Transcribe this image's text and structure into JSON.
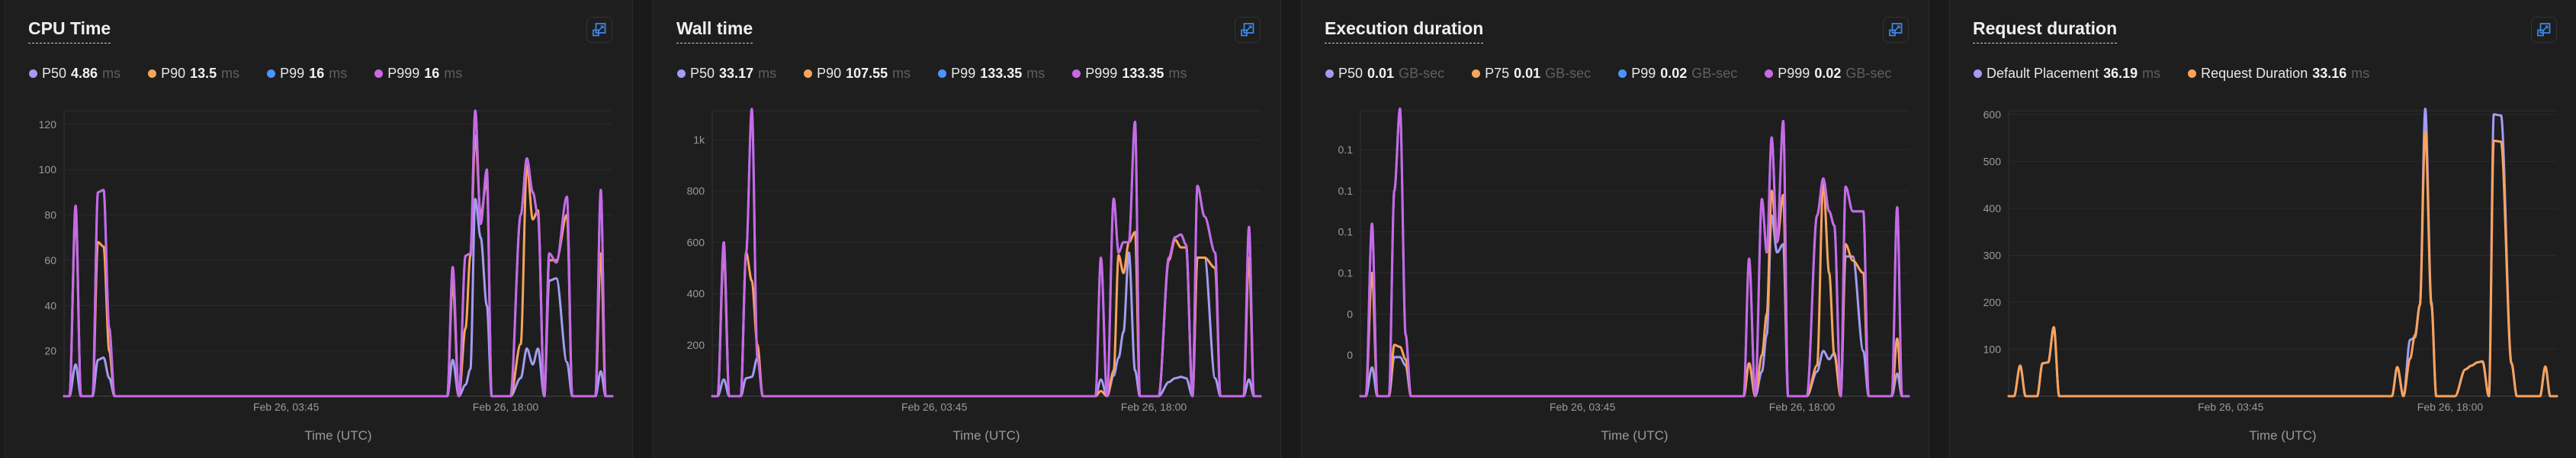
{
  "panels": [
    {
      "title": "CPU Time",
      "expand_icon": "expand-icon",
      "legend": [
        {
          "name": "P50",
          "value": "4.86",
          "unit": "ms",
          "color": "#a39cf4"
        },
        {
          "name": "P90",
          "value": "13.5",
          "unit": "ms",
          "color": "#f9a35c"
        },
        {
          "name": "P99",
          "value": "16",
          "unit": "ms",
          "color": "#4d94ff"
        },
        {
          "name": "P999",
          "value": "16",
          "unit": "ms",
          "color": "#c869e6"
        }
      ]
    },
    {
      "title": "Wall time",
      "expand_icon": "expand-icon",
      "legend": [
        {
          "name": "P50",
          "value": "33.17",
          "unit": "ms",
          "color": "#a39cf4"
        },
        {
          "name": "P90",
          "value": "107.55",
          "unit": "ms",
          "color": "#f9a35c"
        },
        {
          "name": "P99",
          "value": "133.35",
          "unit": "ms",
          "color": "#4d94ff"
        },
        {
          "name": "P999",
          "value": "133.35",
          "unit": "ms",
          "color": "#c869e6"
        }
      ]
    },
    {
      "title": "Execution duration",
      "expand_icon": "expand-icon",
      "legend": [
        {
          "name": "P50",
          "value": "0.01",
          "unit": "GB-sec",
          "color": "#a39cf4"
        },
        {
          "name": "P75",
          "value": "0.01",
          "unit": "GB-sec",
          "color": "#f9a35c"
        },
        {
          "name": "P99",
          "value": "0.02",
          "unit": "GB-sec",
          "color": "#4d94ff"
        },
        {
          "name": "P999",
          "value": "0.02",
          "unit": "GB-sec",
          "color": "#c869e6"
        }
      ]
    },
    {
      "title": "Request duration",
      "expand_icon": "expand-icon",
      "legend": [
        {
          "name": "Default Placement",
          "value": "36.19",
          "unit": "ms",
          "color": "#a39cf4"
        },
        {
          "name": "Request Duration",
          "value": "33.16",
          "unit": "ms",
          "color": "#f9a35c"
        }
      ]
    }
  ],
  "chart_data": [
    {
      "type": "line",
      "title": "CPU Time",
      "xlabel": "Time (UTC)",
      "ylabel": "",
      "grid": true,
      "legend": "top-left",
      "xlim": [
        "Feb 25, 13:20",
        "Feb 27, 00:56"
      ],
      "ylim": [
        0,
        126
      ],
      "xticks": [
        {
          "value": "Feb 26, 03:45",
          "label": "Feb 26, 03:45"
        },
        {
          "value": "Feb 26, 18:00",
          "label": "Feb 26, 18:00"
        }
      ],
      "yticks": [
        {
          "value": 20,
          "label": "20"
        },
        {
          "value": 40,
          "label": "40"
        },
        {
          "value": 60,
          "label": "60"
        },
        {
          "value": 80,
          "label": "80"
        },
        {
          "value": 100,
          "label": "100"
        },
        {
          "value": 120,
          "label": "120"
        }
      ],
      "x": [
        "Feb 25, 13:20",
        "Feb 25, 13:41",
        "Feb 25, 14:05",
        "Feb 25, 14:26",
        "Feb 25, 15:11",
        "Feb 25, 15:32",
        "Feb 25, 15:54",
        "Feb 25, 16:16",
        "Feb 25, 16:37",
        "Feb 26, 14:13",
        "Feb 26, 14:34",
        "Feb 26, 14:58",
        "Feb 26, 15:24",
        "Feb 26, 15:43",
        "Feb 26, 16:02",
        "Feb 26, 16:23",
        "Feb 26, 16:47",
        "Feb 26, 17:06",
        "Feb 26, 18:19",
        "Feb 26, 18:59",
        "Feb 26, 19:23",
        "Feb 26, 19:46",
        "Feb 26, 20:06",
        "Feb 26, 20:31",
        "Feb 26, 20:50",
        "Feb 26, 21:18",
        "Feb 26, 21:59",
        "Feb 26, 22:20",
        "Feb 26, 23:50",
        "Feb 27, 00:11",
        "Feb 27, 00:30",
        "Feb 27, 00:56"
      ],
      "series": [
        {
          "name": "P50",
          "color": "#a39cf4",
          "values": [
            0,
            0,
            14,
            0,
            0,
            16,
            17,
            8,
            0,
            0,
            16,
            0,
            5,
            12,
            87,
            70,
            40,
            0,
            0,
            8,
            21,
            14,
            21,
            0,
            51,
            52,
            15,
            0,
            0,
            11,
            0,
            0
          ]
        },
        {
          "name": "P90",
          "color": "#f9a35c",
          "values": [
            0,
            0,
            80,
            0,
            0,
            68,
            66,
            20,
            0,
            0,
            50,
            0,
            30,
            62,
            115,
            80,
            95,
            0,
            0,
            23,
            102,
            78,
            82,
            0,
            60,
            60,
            80,
            0,
            0,
            63,
            0,
            0
          ]
        },
        {
          "name": "P99",
          "color": "#4d94ff",
          "values": [
            0,
            0,
            84,
            0,
            0,
            90,
            91,
            30,
            0,
            0,
            57,
            0,
            62,
            63,
            126,
            76,
            100,
            0,
            0,
            80,
            105,
            90,
            80,
            0,
            63,
            59,
            88,
            0,
            0,
            91,
            0,
            0
          ]
        },
        {
          "name": "P999",
          "color": "#c869e6",
          "values": [
            0,
            0,
            84,
            0,
            0,
            90,
            91,
            30,
            0,
            0,
            57,
            0,
            62,
            63,
            126,
            76,
            100,
            0,
            0,
            80,
            105,
            90,
            80,
            0,
            63,
            59,
            88,
            0,
            0,
            91,
            0,
            0
          ]
        }
      ]
    },
    {
      "type": "line",
      "title": "Wall time",
      "xlabel": "Time (UTC)",
      "ylabel": "",
      "grid": true,
      "legend": "top-left",
      "xlim": [
        "Feb 25, 13:20",
        "Feb 27, 00:56"
      ],
      "ylim": [
        0,
        1113
      ],
      "xticks": [
        {
          "value": "Feb 26, 03:45",
          "label": "Feb 26, 03:45"
        },
        {
          "value": "Feb 26, 18:00",
          "label": "Feb 26, 18:00"
        }
      ],
      "yticks": [
        {
          "value": 200,
          "label": "200"
        },
        {
          "value": 400,
          "label": "400"
        },
        {
          "value": 600,
          "label": "600"
        },
        {
          "value": 800,
          "label": "800"
        },
        {
          "value": 1000,
          "label": "1k"
        }
      ],
      "x": [
        "Feb 25, 13:20",
        "Feb 25, 13:41",
        "Feb 25, 14:05",
        "Feb 25, 14:26",
        "Feb 25, 15:11",
        "Feb 25, 15:32",
        "Feb 25, 15:54",
        "Feb 25, 16:16",
        "Feb 25, 16:37",
        "Feb 26, 14:13",
        "Feb 26, 14:34",
        "Feb 26, 14:58",
        "Feb 26, 15:24",
        "Feb 26, 15:43",
        "Feb 26, 16:02",
        "Feb 26, 16:23",
        "Feb 26, 16:47",
        "Feb 26, 17:06",
        "Feb 26, 18:19",
        "Feb 26, 18:59",
        "Feb 26, 19:23",
        "Feb 26, 19:46",
        "Feb 26, 20:06",
        "Feb 26, 20:31",
        "Feb 26, 20:50",
        "Feb 26, 21:18",
        "Feb 26, 21:59",
        "Feb 26, 22:20",
        "Feb 26, 23:50",
        "Feb 27, 00:11",
        "Feb 27, 00:30",
        "Feb 27, 00:56"
      ],
      "series": [
        {
          "name": "P50",
          "color": "#a39cf4",
          "values": [
            0,
            0,
            65,
            0,
            0,
            70,
            75,
            150,
            0,
            0,
            65,
            0,
            80,
            150,
            250,
            560,
            100,
            0,
            0,
            55,
            70,
            75,
            70,
            0,
            540,
            540,
            70,
            0,
            0,
            65,
            0,
            0
          ]
        },
        {
          "name": "P90",
          "color": "#f9a35c",
          "values": [
            0,
            0,
            560,
            0,
            0,
            560,
            450,
            200,
            0,
            0,
            20,
            0,
            100,
            550,
            480,
            600,
            640,
            0,
            0,
            530,
            610,
            580,
            580,
            0,
            540,
            540,
            500,
            0,
            0,
            540,
            0,
            0
          ]
        },
        {
          "name": "P99",
          "color": "#4d94ff",
          "values": [
            0,
            0,
            600,
            0,
            0,
            560,
            1120,
            150,
            0,
            0,
            540,
            0,
            770,
            560,
            600,
            600,
            1070,
            0,
            0,
            540,
            620,
            630,
            590,
            0,
            820,
            700,
            560,
            0,
            0,
            660,
            0,
            0
          ]
        },
        {
          "name": "P999",
          "color": "#c869e6",
          "values": [
            0,
            0,
            600,
            0,
            0,
            560,
            1120,
            150,
            0,
            0,
            540,
            0,
            770,
            560,
            600,
            600,
            1070,
            0,
            0,
            540,
            620,
            630,
            590,
            0,
            820,
            700,
            560,
            0,
            0,
            660,
            0,
            0
          ]
        }
      ]
    },
    {
      "type": "line",
      "title": "Execution duration",
      "xlabel": "Time (UTC)",
      "ylabel": "",
      "grid": true,
      "legend": "top-left",
      "xlim": [
        "Feb 25, 13:20",
        "Feb 27, 00:56"
      ],
      "ylim": [
        0,
        0.139
      ],
      "xticks": [
        {
          "value": "Feb 26, 03:45",
          "label": "Feb 26, 03:45"
        },
        {
          "value": "Feb 26, 18:00",
          "label": "Feb 26, 18:00"
        }
      ],
      "yticks": [
        {
          "value": 0.02,
          "label": "0"
        },
        {
          "value": 0.04,
          "label": "0"
        },
        {
          "value": 0.06,
          "label": "0.1"
        },
        {
          "value": 0.08,
          "label": "0.1"
        },
        {
          "value": 0.1,
          "label": "0.1"
        },
        {
          "value": 0.12,
          "label": "0.1"
        }
      ],
      "x": [
        "Feb 25, 13:20",
        "Feb 25, 13:41",
        "Feb 25, 14:05",
        "Feb 25, 14:26",
        "Feb 25, 15:11",
        "Feb 25, 15:32",
        "Feb 25, 15:54",
        "Feb 25, 16:16",
        "Feb 25, 16:37",
        "Feb 26, 14:13",
        "Feb 26, 14:34",
        "Feb 26, 14:58",
        "Feb 26, 15:24",
        "Feb 26, 15:43",
        "Feb 26, 16:02",
        "Feb 26, 16:23",
        "Feb 26, 16:47",
        "Feb 26, 17:06",
        "Feb 26, 18:19",
        "Feb 26, 18:59",
        "Feb 26, 19:23",
        "Feb 26, 19:46",
        "Feb 26, 20:06",
        "Feb 26, 20:31",
        "Feb 26, 20:50",
        "Feb 26, 21:18",
        "Feb 26, 21:59",
        "Feb 26, 22:20",
        "Feb 26, 23:50",
        "Feb 27, 00:11",
        "Feb 27, 00:30",
        "Feb 27, 00:56"
      ],
      "series": [
        {
          "name": "P50",
          "color": "#a39cf4",
          "values": [
            0,
            0,
            0.014,
            0,
            0,
            0.019,
            0.019,
            0.015,
            0,
            0,
            0.016,
            0,
            0.012,
            0.03,
            0.088,
            0.07,
            0.074,
            0,
            0,
            0.012,
            0.022,
            0.018,
            0.021,
            0,
            0.068,
            0.068,
            0.022,
            0,
            0,
            0.011,
            0,
            0
          ]
        },
        {
          "name": "P75",
          "color": "#f9a35c",
          "values": [
            0,
            0,
            0.06,
            0,
            0,
            0.025,
            0.024,
            0.018,
            0,
            0,
            0.016,
            0,
            0.02,
            0.04,
            0.1,
            0.075,
            0.098,
            0,
            0,
            0.015,
            0.104,
            0.06,
            0.02,
            0,
            0.074,
            0.066,
            0.06,
            0,
            0,
            0.028,
            0,
            0
          ]
        },
        {
          "name": "P99",
          "color": "#4d94ff",
          "values": [
            0,
            0,
            0.084,
            0,
            0,
            0.1,
            0.14,
            0.03,
            0,
            0,
            0.067,
            0,
            0.096,
            0.07,
            0.126,
            0.075,
            0.134,
            0,
            0,
            0.088,
            0.106,
            0.09,
            0.083,
            0,
            0.102,
            0.09,
            0.09,
            0,
            0,
            0.092,
            0,
            0
          ]
        },
        {
          "name": "P999",
          "color": "#c869e6",
          "values": [
            0,
            0,
            0.084,
            0,
            0,
            0.1,
            0.14,
            0.03,
            0,
            0,
            0.067,
            0,
            0.096,
            0.07,
            0.126,
            0.075,
            0.134,
            0,
            0,
            0.088,
            0.106,
            0.09,
            0.083,
            0,
            0.102,
            0.09,
            0.09,
            0,
            0,
            0.092,
            0,
            0
          ]
        }
      ]
    },
    {
      "type": "line",
      "title": "Request duration",
      "xlabel": "Time (UTC)",
      "ylabel": "",
      "grid": true,
      "legend": "top-left",
      "xlim": [
        "Feb 25, 13:20",
        "Feb 27, 00:56"
      ],
      "ylim": [
        0,
        608
      ],
      "xticks": [
        {
          "value": "Feb 26, 03:45",
          "label": "Feb 26, 03:45"
        },
        {
          "value": "Feb 26, 18:00",
          "label": "Feb 26, 18:00"
        }
      ],
      "yticks": [
        {
          "value": 100,
          "label": "100"
        },
        {
          "value": 200,
          "label": "200"
        },
        {
          "value": 300,
          "label": "300"
        },
        {
          "value": 400,
          "label": "400"
        },
        {
          "value": 500,
          "label": "500"
        },
        {
          "value": 600,
          "label": "600"
        }
      ],
      "x": [
        "Feb 25, 13:20",
        "Feb 25, 13:41",
        "Feb 25, 14:05",
        "Feb 25, 14:26",
        "Feb 25, 15:11",
        "Feb 25, 15:32",
        "Feb 25, 15:54",
        "Feb 25, 16:16",
        "Feb 25, 16:37",
        "Feb 26, 14:13",
        "Feb 26, 14:34",
        "Feb 26, 14:58",
        "Feb 26, 15:24",
        "Feb 26, 15:43",
        "Feb 26, 16:02",
        "Feb 26, 16:23",
        "Feb 26, 16:47",
        "Feb 26, 17:06",
        "Feb 26, 18:19",
        "Feb 26, 18:59",
        "Feb 26, 19:23",
        "Feb 26, 19:46",
        "Feb 26, 20:06",
        "Feb 26, 20:31",
        "Feb 26, 20:50",
        "Feb 26, 21:18",
        "Feb 26, 21:59",
        "Feb 26, 22:20",
        "Feb 26, 23:50",
        "Feb 27, 00:11",
        "Feb 27, 00:30",
        "Feb 27, 00:56"
      ],
      "series": [
        {
          "name": "Default Placement",
          "color": "#a39cf4",
          "values": [
            0,
            0,
            65,
            0,
            0,
            70,
            72,
            147,
            0,
            0,
            62,
            0,
            120,
            125,
            194,
            612,
            200,
            0,
            0,
            57,
            65,
            72,
            74,
            0,
            600,
            598,
            70,
            0,
            0,
            63,
            0,
            0
          ]
        },
        {
          "name": "Request Duration",
          "color": "#f9a35c",
          "values": [
            0,
            0,
            65,
            0,
            0,
            70,
            72,
            147,
            0,
            0,
            62,
            0,
            80,
            130,
            194,
            563,
            194,
            0,
            0,
            57,
            65,
            72,
            74,
            0,
            544,
            542,
            70,
            0,
            0,
            63,
            0,
            0
          ]
        }
      ]
    }
  ]
}
